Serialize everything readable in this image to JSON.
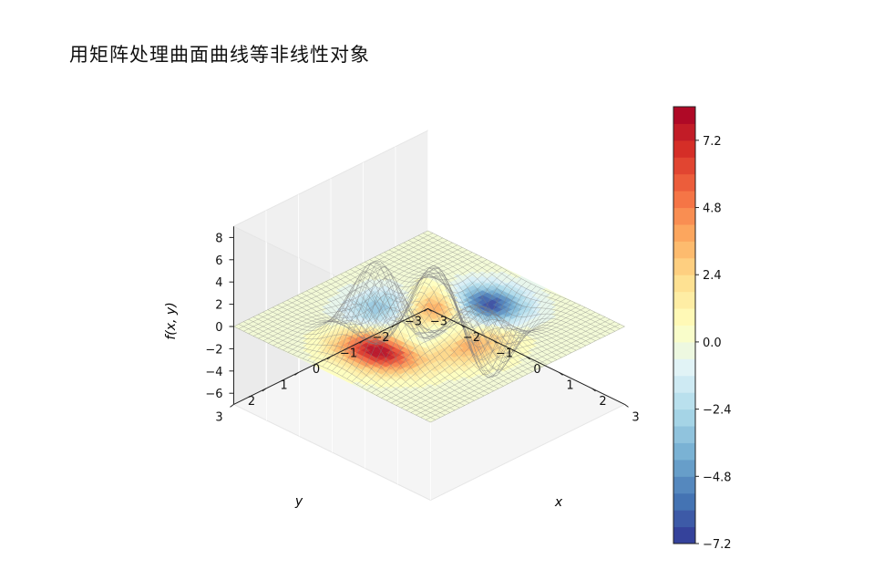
{
  "page_title": "用矩阵处理曲面曲线等非线性对象",
  "chart_data": {
    "type": "surface3d",
    "title": "",
    "xlabel": "x",
    "ylabel": "y",
    "zlabel": "f(x, y)",
    "x_range": [
      -3,
      3
    ],
    "y_range": [
      -3,
      3
    ],
    "z_range": [
      -7,
      9
    ],
    "x_ticks": [
      "−3",
      "−2",
      "−1",
      "0",
      "1",
      "2",
      "3"
    ],
    "y_ticks": [
      "−3",
      "−2",
      "−1",
      "0",
      "1",
      "2",
      "3"
    ],
    "z_ticks": [
      "−6",
      "−4",
      "−2",
      "0",
      "2",
      "4",
      "6",
      "8"
    ],
    "wireframe_function": "f(x,y) = 3(1−x)^2·e^(−x^2−(y+1)^2) − 10(x/5−x^3−y^5)·e^(−x^2−y^2) − (1/3)·e^(−(x+1)^2−y^2)",
    "contour_projection": "filled contour of f on z = 0 plane",
    "grid": true,
    "colormap": "RdYlBu_r",
    "colorbar": {
      "ticks": [
        "−7.2",
        "−4.8",
        "−2.4",
        "0.0",
        "2.4",
        "4.8",
        "7.2"
      ],
      "min": -7.2,
      "max": 8.4,
      "colors": [
        "#313695",
        "#4575b4",
        "#74add1",
        "#abd9e9",
        "#e0f3f8",
        "#ffffbf",
        "#fee090",
        "#fdae61",
        "#f46d43",
        "#d73027",
        "#a50026"
      ]
    }
  }
}
